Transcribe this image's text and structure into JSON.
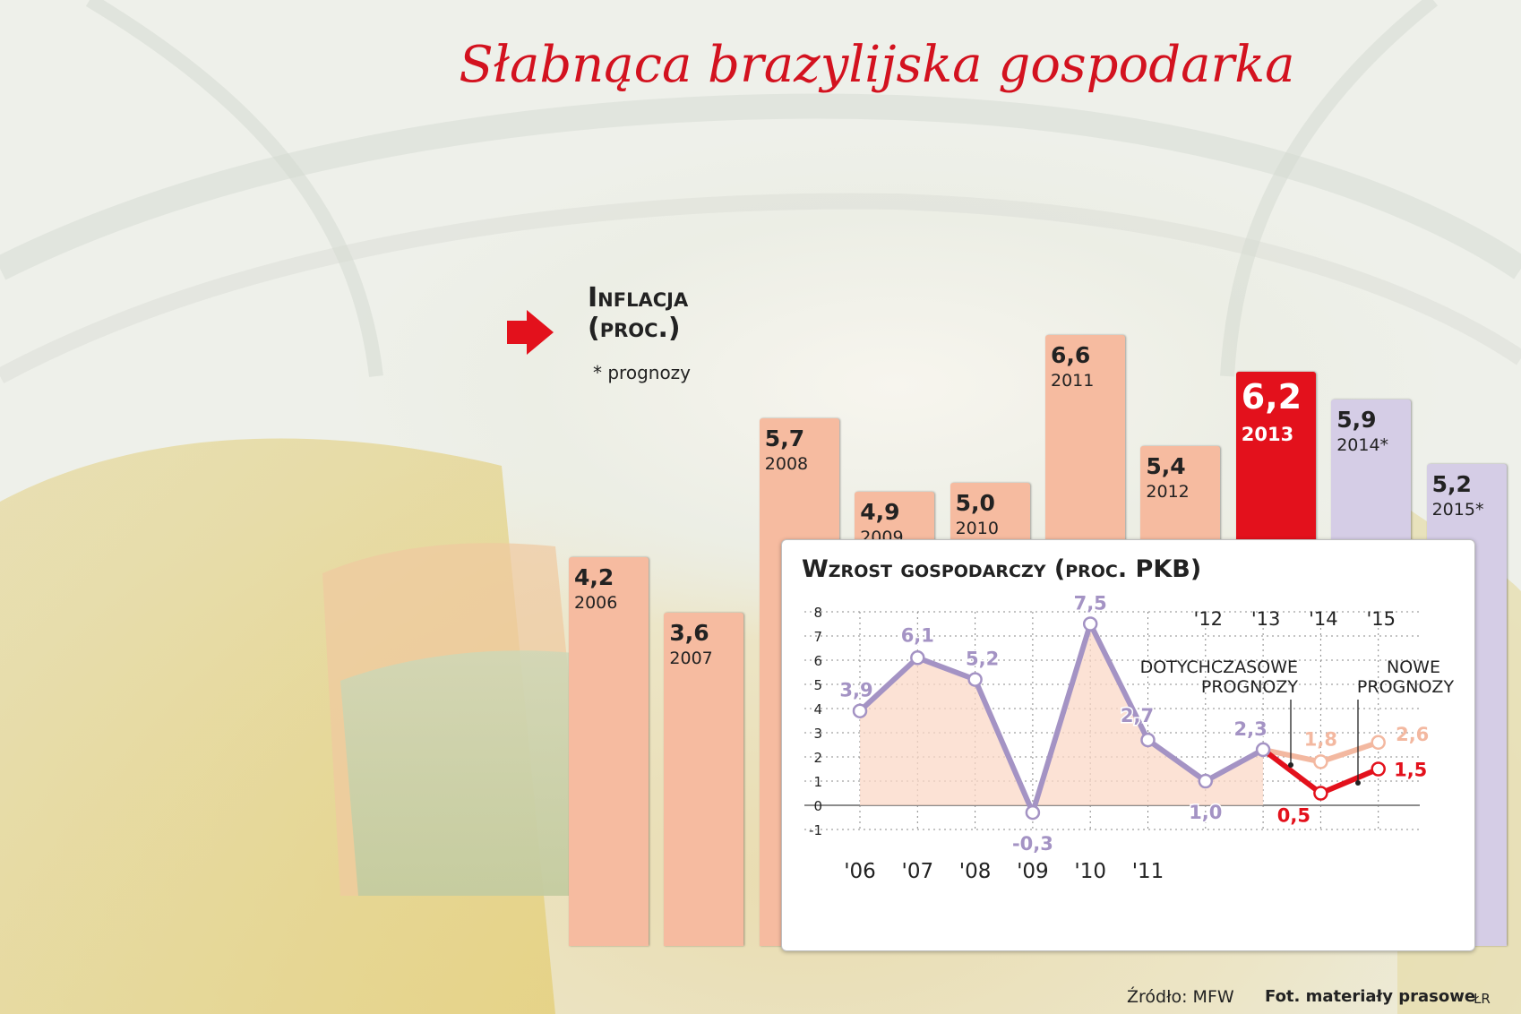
{
  "title": "Słabnąca brazylijska gospodarka",
  "legend": {
    "title_line1": "Inflacja",
    "title_line2": "(proc.)",
    "note": "* prognozy",
    "arrow": "red-arrow-icon"
  },
  "colors": {
    "title": "#d3121f",
    "inflation_bar": "#f6bba0",
    "inflation_highlight": "#e3111c",
    "inflation_forecast": "#d5cde6",
    "growth_line": "#a493c4",
    "growth_fill": "#fbd8c7",
    "old_forecast": "#f3b8a0",
    "new_forecast": "#e3111c"
  },
  "chart_data": [
    {
      "type": "bar",
      "title": "Inflacja (proc.)",
      "categories": [
        "2006",
        "2007",
        "2008",
        "2009",
        "2010",
        "2011",
        "2012",
        "2013",
        "2014*",
        "2015*"
      ],
      "labels": [
        "4,2",
        "3,6",
        "5,7",
        "4,9",
        "5,0",
        "6,6",
        "5,4",
        "6,2",
        "5,9",
        "5,2"
      ],
      "values": [
        4.2,
        3.6,
        5.7,
        4.9,
        5.0,
        6.6,
        5.4,
        6.2,
        5.9,
        5.2
      ],
      "highlight": "2013",
      "forecast": [
        "2014*",
        "2015*"
      ]
    },
    {
      "type": "line",
      "title": "Wzrost gospodarczy (proc. PKB)",
      "ylim": [
        -1,
        8
      ],
      "yticks": [
        "-1",
        "0",
        "1",
        "2",
        "3",
        "4",
        "5",
        "6",
        "7",
        "8"
      ],
      "x_top": [
        "'12",
        "'13",
        "'14",
        "'15"
      ],
      "x_bottom": [
        "'06",
        "'07",
        "'08",
        "'09",
        "'10",
        "'11"
      ],
      "series": [
        {
          "values": [
            3.9,
            6.1,
            5.2,
            -0.3,
            7.5,
            2.7,
            1.0,
            2.3
          ],
          "labels": [
            "3,9",
            "6,1",
            "5,2",
            "-0,3",
            "7,5",
            "2,7",
            "1,0",
            "2,3"
          ]
        },
        {
          "name": "Dotychczasowe prognozy",
          "values": [
            2.3,
            1.8,
            2.6
          ],
          "labels": [
            "",
            "1,8",
            "2,6"
          ]
        },
        {
          "name": "Nowe prognozy",
          "values": [
            2.3,
            0.5,
            1.5
          ],
          "labels": [
            "",
            "0,5",
            "1,5"
          ]
        }
      ],
      "annotations": {
        "old_line1": "DOTYCHCZASOWE",
        "old_line2": "PROGNOZY",
        "new_line1": "NOWE",
        "new_line2": "PROGNOZY"
      }
    }
  ],
  "footer": {
    "source": "Źródło: MFW",
    "photo": "Fot. materiały prasowe",
    "author": "ŁR"
  }
}
